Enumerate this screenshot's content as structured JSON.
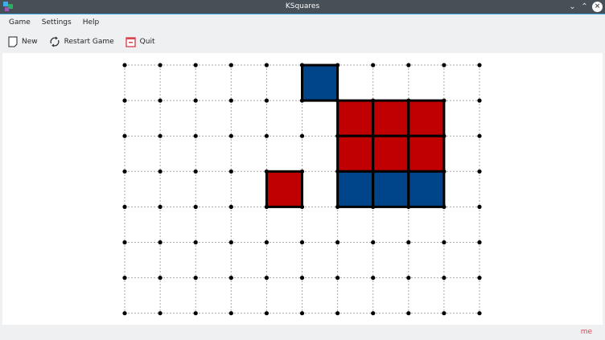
{
  "window": {
    "title": "KSquares"
  },
  "menu": [
    "Game",
    "Settings",
    "Help"
  ],
  "toolbar": {
    "new": "New",
    "restart": "Restart Game",
    "quit": "Quit"
  },
  "status": {
    "player": "me"
  },
  "colors": {
    "player_red": "#c00000",
    "player_blue": "#00448a"
  },
  "board": {
    "columns": 10,
    "rows": 7,
    "boxes": [
      {
        "col": 5,
        "row": 0,
        "owner": "blue"
      },
      {
        "col": 6,
        "row": 1,
        "owner": "red"
      },
      {
        "col": 7,
        "row": 1,
        "owner": "red"
      },
      {
        "col": 8,
        "row": 1,
        "owner": "red"
      },
      {
        "col": 6,
        "row": 2,
        "owner": "red"
      },
      {
        "col": 7,
        "row": 2,
        "owner": "red"
      },
      {
        "col": 8,
        "row": 2,
        "owner": "red"
      },
      {
        "col": 4,
        "row": 3,
        "owner": "red"
      },
      {
        "col": 6,
        "row": 3,
        "owner": "blue"
      },
      {
        "col": 7,
        "row": 3,
        "owner": "blue"
      },
      {
        "col": 8,
        "row": 3,
        "owner": "blue"
      }
    ]
  }
}
